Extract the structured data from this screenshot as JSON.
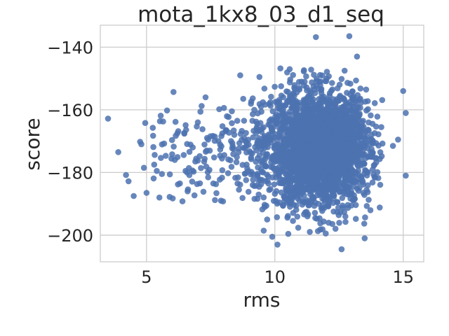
{
  "chart_data": {
    "type": "scatter",
    "title": "mota_1kx8_03_d1_seq",
    "xlabel": "rms",
    "ylabel": "score",
    "xlim": [
      3.2,
      15.8
    ],
    "ylim": [
      -208.5,
      -133
    ],
    "xticks": [
      5,
      10,
      15
    ],
    "xtick_labels": [
      "5",
      "10",
      "15"
    ],
    "yticks": [
      -140,
      -160,
      -180,
      -200
    ],
    "ytick_labels": [
      "−140",
      "−160",
      "−180",
      "−200"
    ],
    "grid": true,
    "color": "#4c72b0",
    "series": [
      {
        "points": [
          [
            3.5,
            -162.8
          ],
          [
            3.9,
            -173.5
          ],
          [
            4.2,
            -180.8
          ],
          [
            4.3,
            -182.8
          ],
          [
            4.5,
            -187.5
          ],
          [
            4.75,
            -170.2
          ],
          [
            4.8,
            -171.0
          ],
          [
            4.9,
            -178.5
          ],
          [
            4.95,
            -164.2
          ],
          [
            5.0,
            -186.5
          ],
          [
            5.3,
            -177.5
          ],
          [
            5.4,
            -179.5
          ],
          [
            5.5,
            -188.0
          ],
          [
            5.6,
            -180.5
          ],
          [
            5.8,
            -160.2
          ],
          [
            5.9,
            -187.8
          ],
          [
            6.0,
            -174.2
          ],
          [
            6.05,
            -154.3
          ],
          [
            6.2,
            -167.5
          ],
          [
            6.3,
            -183.5
          ],
          [
            6.4,
            -189.2
          ],
          [
            6.6,
            -186.0
          ],
          [
            6.8,
            -172.0
          ],
          [
            6.9,
            -176.5
          ],
          [
            7.0,
            -164.0
          ],
          [
            7.1,
            -160.6
          ],
          [
            7.3,
            -156.0
          ],
          [
            7.4,
            -169.5
          ],
          [
            7.6,
            -183.5
          ],
          [
            7.8,
            -170.0
          ],
          [
            7.9,
            -189.0
          ],
          [
            8.1,
            -166.5
          ],
          [
            8.4,
            -172.5
          ],
          [
            8.6,
            -185.5
          ],
          [
            8.65,
            -149.0
          ],
          [
            8.8,
            -163.5
          ],
          [
            8.9,
            -177.5
          ],
          [
            9.2,
            -160.0
          ],
          [
            9.4,
            -149.5
          ],
          [
            9.5,
            -166.0
          ],
          [
            9.7,
            -195.0
          ],
          [
            9.9,
            -200.5
          ],
          [
            10.1,
            -203.0
          ],
          [
            9.6,
            -191.0
          ],
          [
            12.6,
            -204.5
          ],
          [
            12.9,
            -136.5
          ],
          [
            11.6,
            -136.8
          ],
          [
            13.5,
            -201.0
          ],
          [
            15.0,
            -154.0
          ],
          [
            15.1,
            -161.0
          ],
          [
            15.1,
            -181.0
          ],
          [
            14.8,
            -169.5
          ],
          [
            14.6,
            -171.5
          ],
          [
            13.2,
            -143.0
          ]
        ],
        "dense_region": {
          "x_center": 11.7,
          "y_center": -172.5,
          "x_spread": 1.0,
          "y_spread": 9.0,
          "x_range": [
            9.0,
            14.2
          ],
          "y_range": [
            -200,
            -146
          ],
          "count": 2600,
          "sparse_count": 260,
          "sparse_x_range": [
            5.2,
            9.8
          ],
          "sparse_y_range": [
            -190,
            -156
          ]
        }
      }
    ]
  }
}
